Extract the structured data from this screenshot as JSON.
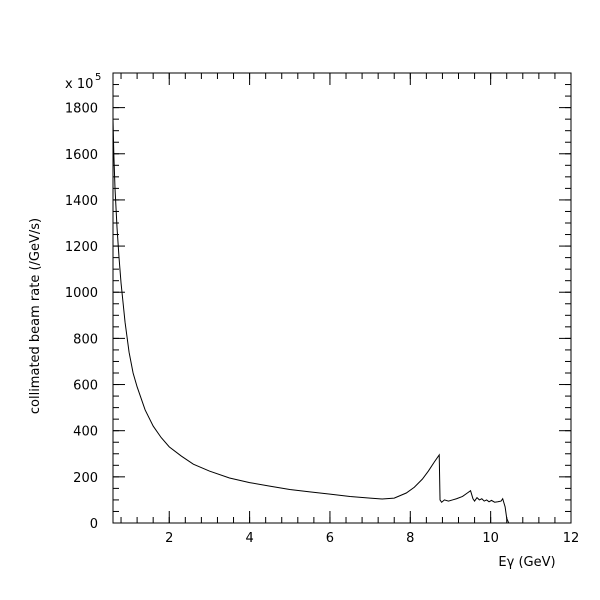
{
  "chart_data": {
    "type": "line",
    "title": "",
    "xlabel": "Eγ (GeV)",
    "ylabel": "collimated beam rate (/GeV/s)",
    "y_multiplier_label": "x 10",
    "y_multiplier_exponent": "5",
    "xlim": [
      0.6,
      12
    ],
    "ylim": [
      0,
      1950
    ],
    "grid": false,
    "legend": "none",
    "line_color": "#000000",
    "x_ticks": [
      2,
      4,
      6,
      8,
      10,
      12
    ],
    "y_ticks": [
      0,
      200,
      400,
      600,
      800,
      1000,
      1200,
      1400,
      1600,
      1800
    ],
    "series": [
      {
        "x": [
          0.6,
          0.62,
          0.65,
          0.7,
          0.75,
          0.8,
          0.9,
          1.0,
          1.1,
          1.2,
          1.4,
          1.6,
          1.8,
          2.0,
          2.3,
          2.6,
          3.0,
          3.5,
          4.0,
          4.5,
          5.0,
          5.5,
          6.0,
          6.5,
          7.0,
          7.3,
          7.6,
          7.9,
          8.1,
          8.3,
          8.45,
          8.6,
          8.72,
          8.74,
          8.78,
          8.85,
          8.95,
          9.05,
          9.15,
          9.3,
          9.42,
          9.5,
          9.56,
          9.6,
          9.66,
          9.72,
          9.78,
          9.84,
          9.9,
          9.96,
          10.02,
          10.1,
          10.18,
          10.26,
          10.3,
          10.36,
          10.4,
          10.45
        ],
        "y": [
          1750,
          1600,
          1450,
          1280,
          1150,
          1040,
          870,
          740,
          650,
          590,
          490,
          420,
          370,
          330,
          290,
          255,
          225,
          195,
          175,
          160,
          145,
          135,
          125,
          115,
          108,
          104,
          108,
          130,
          155,
          190,
          225,
          265,
          295,
          100,
          90,
          100,
          95,
          100,
          105,
          115,
          130,
          140,
          105,
          95,
          110,
          100,
          105,
          95,
          100,
          92,
          98,
          90,
          92,
          95,
          105,
          70,
          20,
          0
        ]
      }
    ]
  }
}
